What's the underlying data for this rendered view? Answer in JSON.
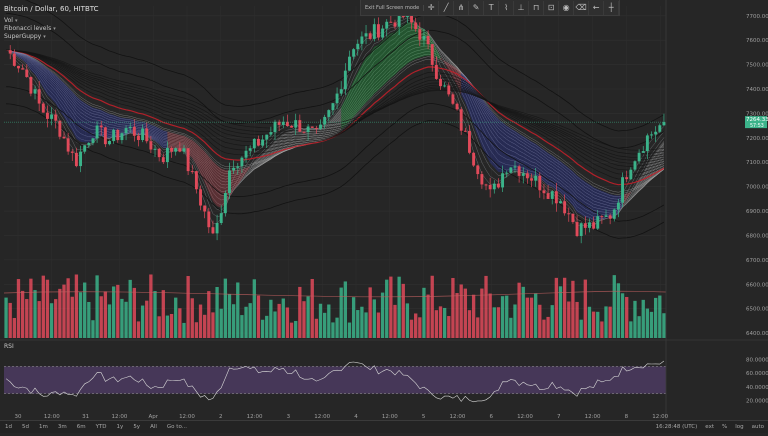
{
  "header": {
    "symbol": "Bitcoin / Dollar, 60, HITBTC",
    "indicators": [
      {
        "label": "Vol"
      },
      {
        "label": "Fibonacci levels"
      },
      {
        "label": "SuperGuppy"
      }
    ]
  },
  "draw_toolbar": {
    "label": "Exit Full Screen mode",
    "tools": [
      "cursor-icon",
      "trend-line-icon",
      "fork-icon",
      "brush-icon",
      "text-icon",
      "pattern-icon",
      "ruler-icon",
      "magnet-icon",
      "lock-icon",
      "eye-icon",
      "trash-icon",
      "back-arrow-icon",
      "crosshair-icon"
    ]
  },
  "price_axis": {
    "ticks": [
      "7700.00",
      "7600.00",
      "7500.00",
      "7400.00",
      "7300.00",
      "7200.00",
      "7100.00",
      "7000.00",
      "6900.00",
      "6800.00",
      "6700.00",
      "6600.00",
      "6500.00",
      "6400.00"
    ],
    "current_price": "7264.33",
    "current_sub": "57:53"
  },
  "rsi_axis": {
    "ticks": [
      "80.0000",
      "60.0000",
      "40.0000",
      "20.0000"
    ]
  },
  "rsi_label": "RSI",
  "time_axis": {
    "ticks": [
      "30",
      "12:00",
      "31",
      "12:00",
      "Apr",
      "12:00",
      "2",
      "12:00",
      "3",
      "12:00",
      "4",
      "12:00",
      "5",
      "12:00",
      "6",
      "12:00",
      "7",
      "12:00",
      "8",
      "12:00"
    ]
  },
  "bottom_bar": {
    "ranges": [
      "1d",
      "5d",
      "1m",
      "3m",
      "6m",
      "YTD",
      "1y",
      "5y",
      "All",
      "Go to..."
    ],
    "time": "16:28:48 (UTC)",
    "options": [
      "ext",
      "%",
      "log",
      "auto"
    ]
  },
  "colors": {
    "background": "#262626",
    "up": "#3bb38a",
    "down": "#e04a5a",
    "guppy_fast_red": "#c0202a",
    "guppy_blue": "#2a3ac8",
    "guppy_green": "#22d04a",
    "rsi_fill": "#4a3a5e"
  },
  "chart_data": {
    "type": "candlestick",
    "title": "Bitcoin / Dollar, 60, HITBTC",
    "ylim": [
      6380,
      7740
    ],
    "price_path": [
      [
        "30",
        7560
      ],
      [
        "",
        7480
      ],
      [
        "",
        7320
      ],
      [
        "12:00",
        7250
      ],
      [
        "",
        7100
      ],
      [
        "31",
        7230
      ],
      [
        "",
        7190
      ],
      [
        "12:00",
        7240
      ],
      [
        "",
        7200
      ],
      [
        "",
        7120
      ],
      [
        "Apr",
        7180
      ],
      [
        "",
        6990
      ],
      [
        "12:00",
        6780
      ],
      [
        "",
        7100
      ],
      [
        "",
        7140
      ],
      [
        "2",
        7210
      ],
      [
        "",
        7270
      ],
      [
        "12:00",
        7250
      ],
      [
        "",
        7200
      ],
      [
        "3",
        7350
      ],
      [
        "",
        7580
      ],
      [
        "12:00",
        7620
      ],
      [
        "",
        7670
      ],
      [
        "4",
        7700
      ],
      [
        "",
        7620
      ],
      [
        "12:00",
        7450
      ],
      [
        "",
        7300
      ],
      [
        "5",
        7120
      ],
      [
        "",
        6960
      ],
      [
        "12:00",
        7100
      ],
      [
        "",
        7060
      ],
      [
        "6",
        7000
      ],
      [
        "",
        6950
      ],
      [
        "12:00",
        6830
      ],
      [
        "",
        6840
      ],
      [
        "7",
        6890
      ],
      [
        "",
        7090
      ],
      [
        "12:00",
        7200
      ],
      [
        "",
        7264
      ]
    ],
    "current_price": 7264.33,
    "rsi": {
      "ylim": [
        0,
        100
      ],
      "levels": [
        70,
        30
      ],
      "last": 78
    }
  }
}
